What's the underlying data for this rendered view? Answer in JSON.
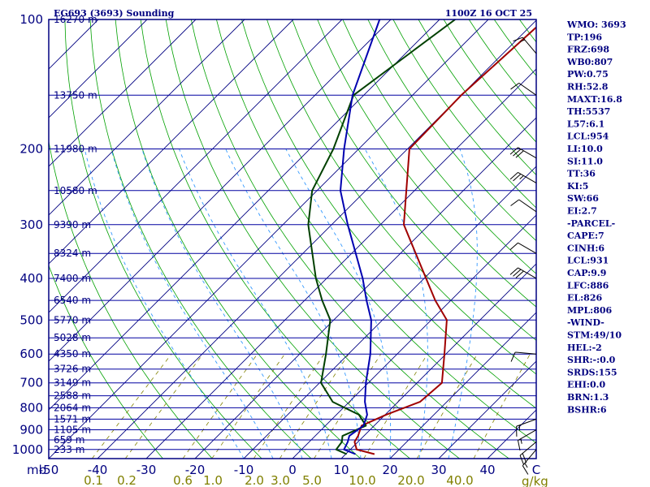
{
  "header": {
    "station_title": "EG693 (3693) Sounding",
    "datetime": "1100Z 16 OCT 25"
  },
  "indices": [
    "WMO: 3693",
    "TP:196",
    "FRZ:698",
    "WB0:807",
    "PW:0.75",
    "RH:52.8",
    "MAXT:16.8",
    "TH:5537",
    "L57:6.1",
    "LCL:954",
    "LI:10.0",
    "SI:11.0",
    "TT:36",
    "KI:5",
    "SW:66",
    "EI:2.7",
    "-PARCEL-",
    "CAPE:7",
    "CINH:6",
    "LCL:931",
    "CAP:9.9",
    "LFC:886",
    "EL:826",
    "MPL:806",
    "-WIND-",
    "STM:49/10",
    "HEL:-2",
    "SHR:-:0.0",
    "SRDS:155",
    "EHI:0.0",
    "BRN:1.3",
    "BSHR:6"
  ],
  "colors": {
    "frame": "#000080",
    "isobar": "#0000a0",
    "isotherm": "#000080",
    "dry_adiabat": "#00a000",
    "moist_adiabat": "#3399ff",
    "mixing_ratio": "#808000",
    "temperature": "#a00000",
    "dewpoint": "#004000",
    "wetbulb": "#0000b0",
    "wind": "#000000"
  },
  "chart_data": {
    "type": "line",
    "subtype": "skew-t log-p",
    "pressure_axis_unit": "mb",
    "temperature_axis_unit": "C",
    "mixing_ratio_unit": "g/kg",
    "pressure_range": [
      1050,
      100
    ],
    "temperature_range": [
      -50,
      50
    ],
    "pressure_ticks": [
      100,
      200,
      300,
      400,
      500,
      600,
      700,
      800,
      900,
      1000
    ],
    "temperature_ticks": [
      -50,
      -40,
      -30,
      -20,
      -10,
      0,
      10,
      20,
      30,
      40
    ],
    "mixing_ratio_ticks": [
      "0.1",
      "0.2",
      "0.6",
      "1.0",
      "2.0",
      "3.0",
      "5.0",
      "10.0",
      "20.0",
      "40.0"
    ],
    "height_labels": [
      {
        "p": 100,
        "label": "16270 m"
      },
      {
        "p": 150,
        "label": "13750 m"
      },
      {
        "p": 200,
        "label": "11980 m"
      },
      {
        "p": 250,
        "label": "10580 m"
      },
      {
        "p": 300,
        "label": "9390 m"
      },
      {
        "p": 350,
        "label": "8324 m"
      },
      {
        "p": 400,
        "label": "7400 m"
      },
      {
        "p": 450,
        "label": "6540 m"
      },
      {
        "p": 500,
        "label": "5770 m"
      },
      {
        "p": 550,
        "label": "5028 m"
      },
      {
        "p": 600,
        "label": "4350 m"
      },
      {
        "p": 650,
        "label": "3726 m"
      },
      {
        "p": 700,
        "label": "3149 m"
      },
      {
        "p": 750,
        "label": "2588 m"
      },
      {
        "p": 800,
        "label": "2064 m"
      },
      {
        "p": 850,
        "label": "1571 m"
      },
      {
        "p": 900,
        "label": "1105 m"
      },
      {
        "p": 950,
        "label": "659 m"
      },
      {
        "p": 1000,
        "label": "233 m"
      }
    ],
    "series": [
      {
        "key": "temperature",
        "points": [
          [
            1025,
            15.9
          ],
          [
            1000,
            11.3
          ],
          [
            960,
            9.3
          ],
          [
            930,
            8.8
          ],
          [
            880,
            7.4
          ],
          [
            830,
            10.2
          ],
          [
            775,
            14.5
          ],
          [
            700,
            15.1
          ],
          [
            600,
            9.7
          ],
          [
            500,
            3.2
          ],
          [
            450,
            -3.2
          ],
          [
            400,
            -9.6
          ],
          [
            300,
            -25.2
          ],
          [
            200,
            -39.6
          ],
          [
            150,
            -40.0
          ],
          [
            100,
            -38.4
          ]
        ]
      },
      {
        "key": "dewpoint",
        "points": [
          [
            1025,
            10.2
          ],
          [
            1000,
            7.1
          ],
          [
            960,
            6.7
          ],
          [
            930,
            5.6
          ],
          [
            880,
            8.3
          ],
          [
            830,
            4.6
          ],
          [
            775,
            -3.4
          ],
          [
            700,
            -9.7
          ],
          [
            600,
            -14.6
          ],
          [
            500,
            -20.7
          ],
          [
            450,
            -26.4
          ],
          [
            400,
            -32.2
          ],
          [
            300,
            -44.8
          ],
          [
            250,
            -51.0
          ],
          [
            200,
            -55.2
          ],
          [
            150,
            -62.1
          ],
          [
            100,
            -56.8
          ]
        ]
      },
      {
        "key": "wetbulb",
        "points": [
          [
            1025,
            12.0
          ],
          [
            1000,
            8.7
          ],
          [
            960,
            7.9
          ],
          [
            930,
            7.0
          ],
          [
            880,
            7.8
          ],
          [
            830,
            6.3
          ],
          [
            775,
            3.2
          ],
          [
            700,
            -0.5
          ],
          [
            600,
            -5.5
          ],
          [
            500,
            -12.3
          ],
          [
            450,
            -17.3
          ],
          [
            400,
            -22.6
          ],
          [
            300,
            -36.7
          ],
          [
            250,
            -45.2
          ],
          [
            200,
            -53.0
          ],
          [
            150,
            -62.3
          ],
          [
            100,
            -72.3
          ]
        ]
      }
    ],
    "wind_barbs": [
      {
        "p": 1000,
        "dir": 220,
        "spd": 15
      },
      {
        "p": 960,
        "dir": 230,
        "spd": 20
      },
      {
        "p": 900,
        "dir": 240,
        "spd": 15
      },
      {
        "p": 850,
        "dir": 250,
        "spd": 15
      },
      {
        "p": 600,
        "dir": 275,
        "spd": 10
      },
      {
        "p": 400,
        "dir": 300,
        "spd": 30
      },
      {
        "p": 350,
        "dir": 300,
        "spd": 10
      },
      {
        "p": 280,
        "dir": 305,
        "spd": 10
      },
      {
        "p": 240,
        "dir": 300,
        "spd": 25
      },
      {
        "p": 210,
        "dir": 300,
        "spd": 30
      },
      {
        "p": 150,
        "dir": 305,
        "spd": 10
      },
      {
        "p": 120,
        "dir": 320,
        "spd": 15
      }
    ]
  }
}
